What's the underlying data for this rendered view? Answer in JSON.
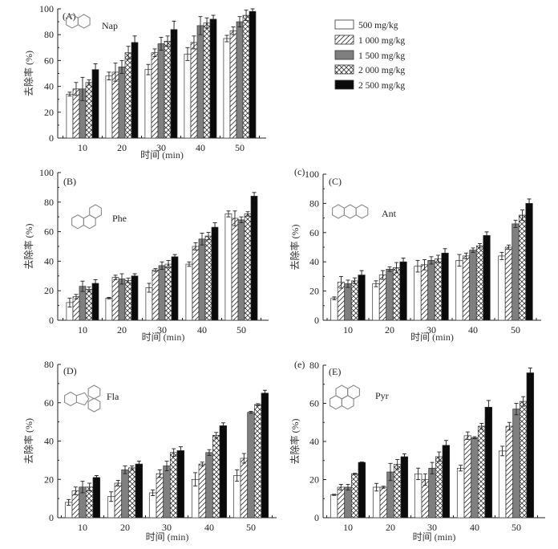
{
  "legend": {
    "items": [
      {
        "label": "500 mg/kg",
        "pattern": "white"
      },
      {
        "label": "1 000 mg/kg",
        "pattern": "diagonal"
      },
      {
        "label": "1 500 mg/kg",
        "pattern": "gray"
      },
      {
        "label": "2 000 mg/kg",
        "pattern": "crosshatch"
      },
      {
        "label": "2 500 mg/kg",
        "pattern": "black"
      }
    ]
  },
  "colors": {
    "gray": "#7f7f7f",
    "black": "#0a0a0a",
    "structure": "#888888"
  },
  "chart_data": [
    {
      "type": "bar",
      "id": "A",
      "panel_label": "(A)",
      "corner_label": "",
      "compound": "Nap",
      "compound_icon": "naphthalene-structure-icon",
      "categories": [
        "10",
        "20",
        "30",
        "40",
        "50"
      ],
      "xlabel": "时间 (min)",
      "ylabel": "去除率 (%)",
      "ylim": [
        0,
        100
      ],
      "yticks": [
        0,
        20,
        40,
        60,
        80,
        100
      ],
      "series": [
        {
          "name": "500 mg/kg",
          "values": [
            34,
            48,
            53,
            65,
            77
          ],
          "errors": [
            1.5,
            3,
            4,
            5,
            2.5
          ]
        },
        {
          "name": "1 000 mg/kg",
          "values": [
            38,
            51,
            66,
            74,
            83
          ],
          "errors": [
            5,
            7,
            3,
            5,
            3
          ]
        },
        {
          "name": "1 500 mg/kg",
          "values": [
            38,
            55,
            73,
            87,
            90
          ],
          "errors": [
            9,
            5,
            5,
            7,
            4
          ]
        },
        {
          "name": "2 000 mg/kg",
          "values": [
            43,
            66,
            75,
            89,
            95
          ],
          "errors": [
            2,
            5,
            4,
            4,
            4
          ]
        },
        {
          "name": "2 500 mg/kg",
          "values": [
            53,
            74,
            84,
            92,
            98
          ],
          "errors": [
            4.5,
            5,
            6.5,
            3,
            2
          ]
        }
      ]
    },
    {
      "type": "bar",
      "id": "B",
      "panel_label": "(B)",
      "corner_label": "",
      "compound": "Phe",
      "compound_icon": "phenanthrene-structure-icon",
      "categories": [
        "10",
        "20",
        "30",
        "40",
        "50"
      ],
      "xlabel": "时间 (min)",
      "ylabel": "去除率 (%)",
      "ylim": [
        0,
        100
      ],
      "yticks": [
        0,
        20,
        40,
        60,
        80,
        100
      ],
      "series": [
        {
          "name": "500 mg/kg",
          "values": [
            12,
            15,
            22,
            38,
            72
          ],
          "errors": [
            3,
            0.5,
            3,
            1.5,
            2
          ]
        },
        {
          "name": "1 000 mg/kg",
          "values": [
            16,
            29,
            34,
            50,
            69
          ],
          "errors": [
            1.5,
            1.5,
            1,
            2.5,
            5
          ]
        },
        {
          "name": "1 500 mg/kg",
          "values": [
            23,
            28,
            37,
            55,
            68
          ],
          "errors": [
            3.5,
            3.5,
            2.5,
            4,
            2
          ]
        },
        {
          "name": "2 000 mg/kg",
          "values": [
            21,
            27,
            38,
            57,
            72
          ],
          "errors": [
            1.5,
            1.5,
            2.5,
            2.5,
            1.5
          ]
        },
        {
          "name": "2 500 mg/kg",
          "values": [
            25,
            30,
            43,
            63,
            84
          ],
          "errors": [
            2.5,
            1.5,
            1.5,
            3,
            2.5
          ]
        }
      ]
    },
    {
      "type": "bar",
      "id": "C",
      "panel_label": "(C)",
      "corner_label": "(c)",
      "compound": "Ant",
      "compound_icon": "anthracene-structure-icon",
      "categories": [
        "10",
        "20",
        "30",
        "40",
        "50"
      ],
      "xlabel": "时间 (min)",
      "ylabel": "去除率 (%)",
      "ylim": [
        0,
        100
      ],
      "yticks": [
        0,
        20,
        40,
        60,
        80,
        100
      ],
      "series": [
        {
          "name": "500 mg/kg",
          "values": [
            15,
            25,
            37,
            41,
            44
          ],
          "errors": [
            1,
            2,
            4,
            4,
            2.5
          ]
        },
        {
          "name": "1 000 mg/kg",
          "values": [
            26,
            31,
            38,
            44,
            50
          ],
          "errors": [
            4,
            3,
            3.5,
            2,
            1.5
          ]
        },
        {
          "name": "1 500 mg/kg",
          "values": [
            25,
            35,
            41,
            48,
            66
          ],
          "errors": [
            2.5,
            1.5,
            2.5,
            1.5,
            2.5
          ]
        },
        {
          "name": "2 000 mg/kg",
          "values": [
            27,
            36,
            42,
            51,
            72
          ],
          "errors": [
            2,
            3.5,
            2.5,
            1.5,
            3.5
          ]
        },
        {
          "name": "2 500 mg/kg",
          "values": [
            31,
            40,
            46,
            58,
            80
          ],
          "errors": [
            3,
            2.5,
            3,
            2.5,
            3
          ]
        }
      ]
    },
    {
      "type": "bar",
      "id": "D",
      "panel_label": "(D)",
      "corner_label": "",
      "compound": "Fla",
      "compound_icon": "fluoranthene-structure-icon",
      "categories": [
        "10",
        "20",
        "30",
        "40",
        "50"
      ],
      "xlabel": "时间 (min)",
      "ylabel": "去除率 (%)",
      "ylim": [
        0,
        80
      ],
      "yticks": [
        0,
        20,
        40,
        60,
        80
      ],
      "series": [
        {
          "name": "500 mg/kg",
          "values": [
            8,
            11,
            13,
            20,
            22
          ],
          "errors": [
            1.5,
            2.5,
            1.5,
            3.5,
            3
          ]
        },
        {
          "name": "1 000 mg/kg",
          "values": [
            14,
            18,
            23,
            28,
            31
          ],
          "errors": [
            2,
            1.5,
            2,
            1,
            2.5
          ]
        },
        {
          "name": "1 500 mg/kg",
          "values": [
            16,
            25,
            27,
            34,
            55
          ],
          "errors": [
            3,
            2,
            2.5,
            1.5,
            0.5
          ]
        },
        {
          "name": "2 000 mg/kg",
          "values": [
            16,
            26,
            34,
            43,
            59
          ],
          "errors": [
            2,
            1,
            2,
            1.5,
            0.5
          ]
        },
        {
          "name": "2 500 mg/kg",
          "values": [
            21,
            28,
            35,
            48,
            65
          ],
          "errors": [
            1,
            1.5,
            2,
            1.5,
            1.5
          ]
        }
      ]
    },
    {
      "type": "bar",
      "id": "E",
      "panel_label": "(E)",
      "corner_label": "(e)",
      "compound": "Pyr",
      "compound_icon": "pyrene-structure-icon",
      "categories": [
        "10",
        "20",
        "30",
        "40",
        "50"
      ],
      "xlabel": "时间 (min)",
      "ylabel": "去除率 (%)",
      "ylim": [
        0,
        80
      ],
      "yticks": [
        0,
        20,
        40,
        60,
        80
      ],
      "series": [
        {
          "name": "500 mg/kg",
          "values": [
            12,
            16,
            23,
            26,
            35
          ],
          "errors": [
            0.3,
            2,
            3,
            1.5,
            2.5
          ]
        },
        {
          "name": "1 000 mg/kg",
          "values": [
            16,
            16,
            20,
            43,
            48
          ],
          "errors": [
            1.5,
            0.5,
            3,
            2,
            2
          ]
        },
        {
          "name": "1 500 mg/kg",
          "values": [
            16,
            24,
            26,
            42,
            57
          ],
          "errors": [
            1.5,
            4.5,
            3,
            0.5,
            3
          ]
        },
        {
          "name": "2 000 mg/kg",
          "values": [
            23,
            28,
            32,
            48,
            61
          ],
          "errors": [
            0.3,
            2.5,
            2.5,
            1.5,
            2.5
          ]
        },
        {
          "name": "2 500 mg/kg",
          "values": [
            29,
            32,
            38,
            58,
            76
          ],
          "errors": [
            0.2,
            1.5,
            2.5,
            3.5,
            2.5
          ]
        }
      ]
    }
  ]
}
